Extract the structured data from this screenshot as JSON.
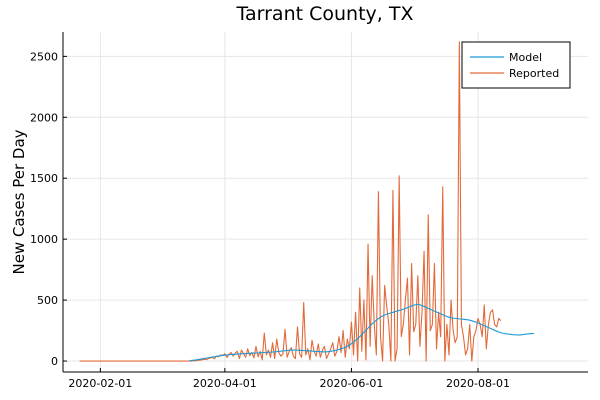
{
  "chart_data": {
    "type": "line",
    "title": "Tarrant County, TX",
    "xlabel": "",
    "ylabel": "New Cases Per Day",
    "x_start": "2020-01-22",
    "x_ticks": [
      "2020-02-01",
      "2020-04-01",
      "2020-06-01",
      "2020-08-01"
    ],
    "xlim": [
      "2020-01-14",
      "2020-09-23"
    ],
    "y_ticks": [
      0,
      500,
      1000,
      1500,
      2000,
      2500
    ],
    "ylim": [
      -90,
      2700
    ],
    "grid": true,
    "legend_position": "top-right",
    "series": [
      {
        "name": "Model",
        "color": "#1a9ad6",
        "x_start": "2020-03-15",
        "values": [
          3,
          5,
          7,
          9,
          12,
          15,
          18,
          21,
          24,
          27,
          30,
          33,
          36,
          39,
          42,
          44,
          46,
          48,
          50,
          52,
          54,
          55,
          56,
          57,
          58,
          59,
          60,
          61,
          62,
          63,
          64,
          65,
          66,
          67,
          68,
          69,
          70,
          71,
          72,
          73,
          74,
          75,
          77,
          79,
          81,
          83,
          85,
          87,
          88,
          89,
          90,
          90,
          89,
          88,
          87,
          86,
          85,
          84,
          83,
          82,
          80,
          79,
          78,
          77,
          76,
          75,
          76,
          78,
          80,
          83,
          86,
          90,
          95,
          100,
          106,
          112,
          120,
          130,
          142,
          155,
          170,
          185,
          200,
          218,
          235,
          252,
          270,
          288,
          305,
          320,
          335,
          348,
          360,
          370,
          378,
          385,
          390,
          395,
          400,
          405,
          410,
          415,
          420,
          425,
          430,
          438,
          445,
          452,
          458,
          462,
          465,
          462,
          455,
          448,
          440,
          432,
          425,
          418,
          410,
          402,
          395,
          388,
          380,
          372,
          365,
          360,
          355,
          352,
          350,
          348,
          346,
          344,
          342,
          340,
          338,
          335,
          330,
          325,
          320,
          312,
          305,
          298,
          290,
          282,
          275,
          268,
          260,
          252,
          245,
          238,
          232,
          228,
          225,
          222,
          220,
          218,
          216,
          215,
          214,
          214,
          215,
          218,
          220,
          222,
          224,
          225,
          226
        ]
      },
      {
        "name": "Reported",
        "color": "#e26a3a",
        "x_start": "2020-01-22",
        "values": [
          0,
          0,
          0,
          0,
          0,
          0,
          0,
          0,
          0,
          0,
          0,
          0,
          0,
          0,
          0,
          0,
          0,
          0,
          0,
          0,
          0,
          0,
          0,
          0,
          0,
          0,
          0,
          0,
          0,
          0,
          0,
          0,
          0,
          0,
          0,
          0,
          0,
          0,
          0,
          0,
          0,
          0,
          0,
          0,
          0,
          0,
          0,
          0,
          0,
          0,
          0,
          0,
          0,
          0,
          1,
          2,
          3,
          5,
          8,
          10,
          15,
          12,
          20,
          25,
          30,
          18,
          40,
          35,
          50,
          45,
          60,
          30,
          55,
          70,
          40,
          65,
          80,
          20,
          90,
          60,
          30,
          100,
          45,
          70,
          25,
          120,
          35,
          80,
          10,
          230,
          50,
          90,
          30,
          150,
          20,
          180,
          70,
          40,
          60,
          260,
          30,
          80,
          110,
          40,
          20,
          280,
          60,
          30,
          480,
          50,
          100,
          10,
          170,
          80,
          40,
          140,
          30,
          90,
          120,
          20,
          60,
          100,
          150,
          40,
          80,
          200,
          70,
          250,
          30,
          180,
          100,
          320,
          50,
          400,
          0,
          600,
          80,
          500,
          10,
          960,
          120,
          700,
          300,
          50,
          1390,
          200,
          0,
          620,
          450,
          300,
          0,
          1400,
          0,
          100,
          1520,
          200,
          300,
          500,
          680,
          50,
          800,
          240,
          300,
          700,
          120,
          400,
          900,
          0,
          1200,
          250,
          300,
          800,
          100,
          400,
          200,
          1430,
          0,
          300,
          50,
          500,
          250,
          150,
          200,
          2620,
          300,
          200,
          50,
          100,
          300,
          0,
          200,
          250,
          350,
          300,
          200,
          460,
          100,
          300,
          400,
          420,
          300,
          280,
          350,
          330
        ]
      }
    ]
  }
}
